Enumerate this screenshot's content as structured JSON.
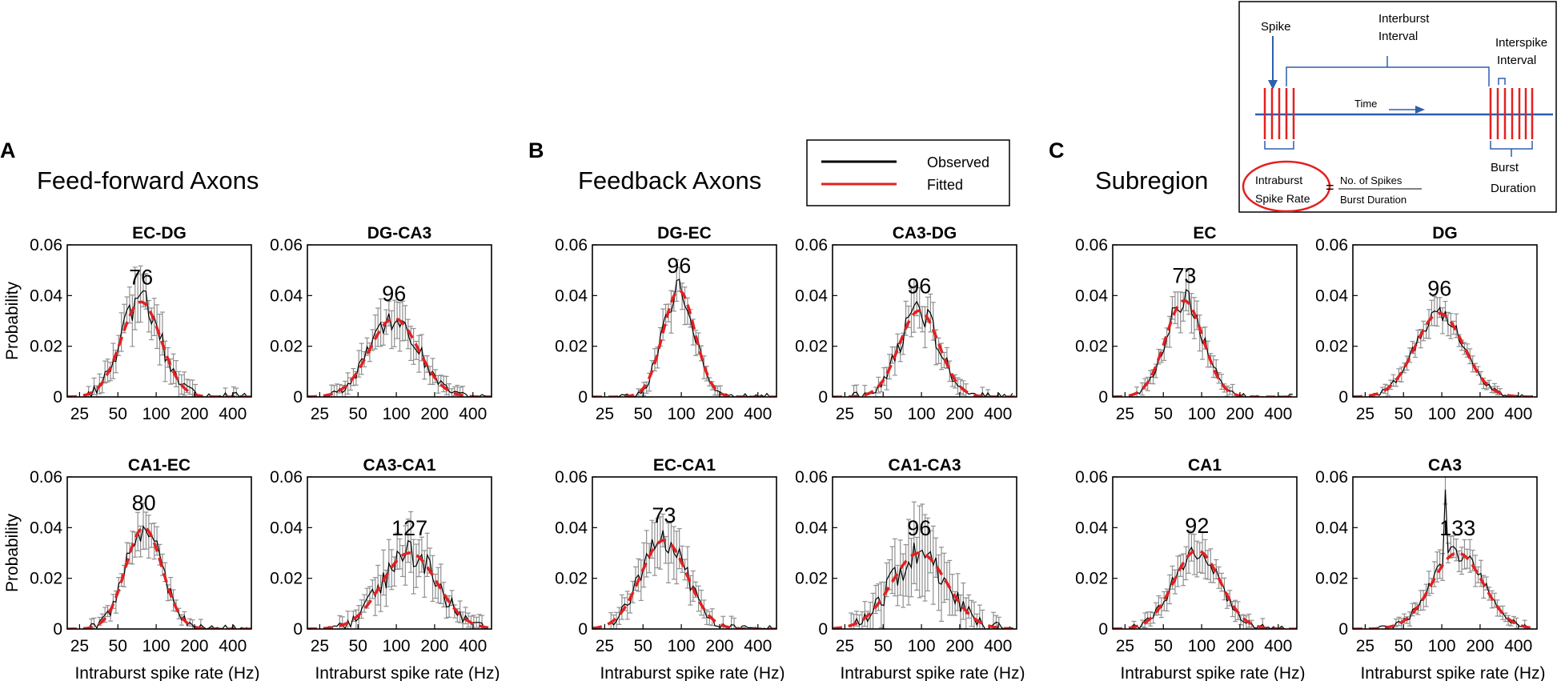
{
  "legend": {
    "observed": "Observed",
    "fitted": "Fitted"
  },
  "inset": {
    "spike": "Spike",
    "interburst_line1": "Interburst",
    "interburst_line2": "Interval",
    "interspike_line1": "Interspike",
    "interspike_line2": "Interval",
    "time": "Time",
    "intraburst_line1": "Intraburst",
    "intraburst_line2": "Spike Rate",
    "equals": "=",
    "numerator": "No. of Spikes",
    "denominator": "Burst Duration",
    "burst_line1": "Burst",
    "burst_line2": "Duration"
  },
  "sections": [
    {
      "letter": "A",
      "title": "Feed-forward Axons"
    },
    {
      "letter": "B",
      "title": "Feedback Axons"
    },
    {
      "letter": "C",
      "title": "Subregion"
    }
  ],
  "colors": {
    "observed": "#000000",
    "error": "#909090",
    "fitted": "#e32020",
    "inset_blue": "#2e5fb0"
  },
  "chart_data": [
    {
      "type": "line",
      "title": "EC-DG",
      "peak_label": "76",
      "peak": 76,
      "sigma": 0.36,
      "amp": 0.0375,
      "noise": 0.0045,
      "err": 0.009,
      "xlabel": "",
      "ylabel": "Probability",
      "xticks": [
        "25",
        "50",
        "100",
        "200",
        "400"
      ],
      "xtick_values": [
        25,
        50,
        100,
        200,
        400
      ],
      "xlim": [
        20,
        560
      ],
      "yticks": [
        "0",
        "0.02",
        "0.04",
        "0.06"
      ],
      "ylim": [
        0,
        0.06
      ],
      "series": [
        {
          "name": "Observed"
        },
        {
          "name": "Fitted"
        }
      ]
    },
    {
      "type": "line",
      "title": "DG-CA3",
      "peak_label": "96",
      "peak": 96,
      "sigma": 0.44,
      "amp": 0.031,
      "noise": 0.0035,
      "err": 0.007,
      "xlabel": "",
      "ylabel": "",
      "xticks": [
        "25",
        "50",
        "100",
        "200",
        "400"
      ],
      "xtick_values": [
        25,
        50,
        100,
        200,
        400
      ],
      "xlim": [
        20,
        560
      ],
      "yticks": [
        "0",
        "0.02",
        "0.04",
        "0.06"
      ],
      "ylim": [
        0,
        0.06
      ],
      "series": [
        {
          "name": "Observed"
        },
        {
          "name": "Fitted"
        }
      ]
    },
    {
      "type": "line",
      "title": "DG-EC",
      "peak_label": "96",
      "peak": 96,
      "sigma": 0.29,
      "amp": 0.042,
      "noise": 0.0035,
      "err": 0.006,
      "xlabel": "",
      "ylabel": "",
      "xticks": [
        "25",
        "50",
        "100",
        "200",
        "400"
      ],
      "xtick_values": [
        25,
        50,
        100,
        200,
        400
      ],
      "xlim": [
        20,
        560
      ],
      "yticks": [
        "0",
        "0.02",
        "0.04",
        "0.06"
      ],
      "ylim": [
        0,
        0.06
      ],
      "series": [
        {
          "name": "Observed"
        },
        {
          "name": "Fitted"
        }
      ]
    },
    {
      "type": "line",
      "title": "CA3-DG",
      "peak_label": "96",
      "peak": 96,
      "sigma": 0.36,
      "amp": 0.034,
      "noise": 0.004,
      "err": 0.007,
      "xlabel": "",
      "ylabel": "",
      "xticks": [
        "25",
        "50",
        "100",
        "200",
        "400"
      ],
      "xtick_values": [
        25,
        50,
        100,
        200,
        400
      ],
      "xlim": [
        20,
        560
      ],
      "yticks": [
        "0",
        "0.02",
        "0.04",
        "0.06"
      ],
      "ylim": [
        0,
        0.06
      ],
      "series": [
        {
          "name": "Observed"
        },
        {
          "name": "Fitted"
        }
      ]
    },
    {
      "type": "line",
      "title": "EC",
      "peak_label": "73",
      "peak": 73,
      "sigma": 0.34,
      "amp": 0.038,
      "noise": 0.0035,
      "err": 0.006,
      "xlabel": "",
      "ylabel": "",
      "xticks": [
        "25",
        "50",
        "100",
        "200",
        "400"
      ],
      "xtick_values": [
        25,
        50,
        100,
        200,
        400
      ],
      "xlim": [
        20,
        560
      ],
      "yticks": [
        "0",
        "0.02",
        "0.04",
        "0.06"
      ],
      "ylim": [
        0,
        0.06
      ],
      "series": [
        {
          "name": "Observed"
        },
        {
          "name": "Fitted"
        }
      ]
    },
    {
      "type": "line",
      "title": "DG",
      "peak_label": "96",
      "peak": 96,
      "sigma": 0.44,
      "amp": 0.033,
      "noise": 0.002,
      "err": 0.004,
      "xlabel": "",
      "ylabel": "",
      "xticks": [
        "25",
        "50",
        "100",
        "200",
        "400"
      ],
      "xtick_values": [
        25,
        50,
        100,
        200,
        400
      ],
      "xlim": [
        20,
        560
      ],
      "yticks": [
        "0",
        "0.02",
        "0.04",
        "0.06"
      ],
      "ylim": [
        0,
        0.06
      ],
      "series": [
        {
          "name": "Observed"
        },
        {
          "name": "Fitted"
        }
      ]
    },
    {
      "type": "line",
      "title": "CA1-EC",
      "peak_label": "80",
      "peak": 80,
      "sigma": 0.33,
      "amp": 0.04,
      "noise": 0.004,
      "err": 0.006,
      "xlabel": "Intraburst spike rate (Hz)",
      "ylabel": "Probability",
      "xticks": [
        "25",
        "50",
        "100",
        "200",
        "400"
      ],
      "xtick_values": [
        25,
        50,
        100,
        200,
        400
      ],
      "xlim": [
        20,
        560
      ],
      "yticks": [
        "0",
        "0.02",
        "0.04",
        "0.06"
      ],
      "ylim": [
        0,
        0.06
      ],
      "series": [
        {
          "name": "Observed"
        },
        {
          "name": "Fitted"
        }
      ]
    },
    {
      "type": "line",
      "title": "CA3-CA1",
      "peak_label": "127",
      "peak": 127,
      "sigma": 0.5,
      "amp": 0.03,
      "noise": 0.0045,
      "err": 0.008,
      "xlabel": "Intraburst spike rate (Hz)",
      "ylabel": "",
      "xticks": [
        "25",
        "50",
        "100",
        "200",
        "400"
      ],
      "xtick_values": [
        25,
        50,
        100,
        200,
        400
      ],
      "xlim": [
        20,
        560
      ],
      "yticks": [
        "0",
        "0.02",
        "0.04",
        "0.06"
      ],
      "ylim": [
        0,
        0.06
      ],
      "series": [
        {
          "name": "Observed"
        },
        {
          "name": "Fitted"
        }
      ]
    },
    {
      "type": "line",
      "title": "EC-CA1",
      "peak_label": "73",
      "peak": 73,
      "sigma": 0.42,
      "amp": 0.035,
      "noise": 0.004,
      "err": 0.008,
      "xlabel": "Intraburst spike rate (Hz)",
      "ylabel": "",
      "xticks": [
        "25",
        "50",
        "100",
        "200",
        "400"
      ],
      "xtick_values": [
        25,
        50,
        100,
        200,
        400
      ],
      "xlim": [
        20,
        560
      ],
      "yticks": [
        "0",
        "0.02",
        "0.04",
        "0.06"
      ],
      "ylim": [
        0,
        0.06
      ],
      "series": [
        {
          "name": "Observed"
        },
        {
          "name": "Fitted"
        }
      ]
    },
    {
      "type": "line",
      "title": "CA1-CA3",
      "peak_label": "96",
      "peak": 96,
      "sigma": 0.5,
      "amp": 0.03,
      "noise": 0.005,
      "err": 0.012,
      "xlabel": "Intraburst spike rate (Hz)",
      "ylabel": "",
      "xticks": [
        "25",
        "50",
        "100",
        "200",
        "400"
      ],
      "xtick_values": [
        25,
        50,
        100,
        200,
        400
      ],
      "xlim": [
        20,
        560
      ],
      "yticks": [
        "0",
        "0.02",
        "0.04",
        "0.06"
      ],
      "ylim": [
        0,
        0.06
      ],
      "series": [
        {
          "name": "Observed"
        },
        {
          "name": "Fitted"
        }
      ]
    },
    {
      "type": "line",
      "title": "CA1",
      "peak_label": "92",
      "peak": 92,
      "sigma": 0.42,
      "amp": 0.031,
      "noise": 0.003,
      "err": 0.006,
      "xlabel": "Intraburst spike rate (Hz)",
      "ylabel": "",
      "xticks": [
        "25",
        "50",
        "100",
        "200",
        "400"
      ],
      "xtick_values": [
        25,
        50,
        100,
        200,
        400
      ],
      "xlim": [
        20,
        560
      ],
      "yticks": [
        "0",
        "0.02",
        "0.04",
        "0.06"
      ],
      "ylim": [
        0,
        0.06
      ],
      "series": [
        {
          "name": "Observed"
        },
        {
          "name": "Fitted"
        }
      ]
    },
    {
      "type": "line",
      "title": "CA3",
      "peak_label": "133",
      "peak": 133,
      "sigma": 0.46,
      "amp": 0.03,
      "noise": 0.0025,
      "err": 0.005,
      "spike": 0.055,
      "xlabel": "Intraburst spike rate (Hz)",
      "ylabel": "",
      "xticks": [
        "25",
        "50",
        "100",
        "200",
        "400"
      ],
      "xtick_values": [
        25,
        50,
        100,
        200,
        400
      ],
      "xlim": [
        20,
        560
      ],
      "yticks": [
        "0",
        "0.02",
        "0.04",
        "0.06"
      ],
      "ylim": [
        0,
        0.06
      ],
      "series": [
        {
          "name": "Observed"
        },
        {
          "name": "Fitted"
        }
      ]
    }
  ]
}
